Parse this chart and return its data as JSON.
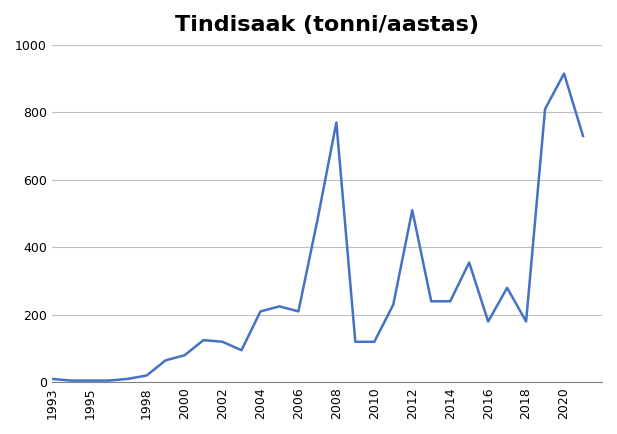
{
  "title": "Tindisaak (tonni/aastas)",
  "years": [
    1993,
    1994,
    1995,
    1996,
    1997,
    1998,
    1999,
    2000,
    2001,
    2002,
    2003,
    2004,
    2005,
    2006,
    2007,
    2008,
    2009,
    2010,
    2011,
    2012,
    2013,
    2014,
    2015,
    2016,
    2017,
    2018,
    2019,
    2020,
    2021
  ],
  "values": [
    10,
    5,
    5,
    5,
    10,
    20,
    65,
    80,
    125,
    120,
    95,
    210,
    225,
    210,
    480,
    770,
    120,
    120,
    230,
    510,
    240,
    240,
    355,
    180,
    280,
    180,
    810,
    915,
    730
  ],
  "line_color": "#4472C4",
  "line_width": 1.8,
  "ylim": [
    0,
    1000
  ],
  "yticks": [
    0,
    200,
    400,
    600,
    800,
    1000
  ],
  "xtick_labels": [
    "1993",
    "1995",
    "1998",
    "2000",
    "2002",
    "2004",
    "2006",
    "2008",
    "2010",
    "2012",
    "2014",
    "2016",
    "2018",
    "2020"
  ],
  "xtick_positions": [
    1993,
    1995,
    1998,
    2000,
    2002,
    2004,
    2006,
    2008,
    2010,
    2012,
    2014,
    2016,
    2018,
    2020
  ],
  "grid_color": "#C0C0C0",
  "background_color": "#FFFFFF",
  "title_fontsize": 16,
  "title_fontweight": "bold"
}
